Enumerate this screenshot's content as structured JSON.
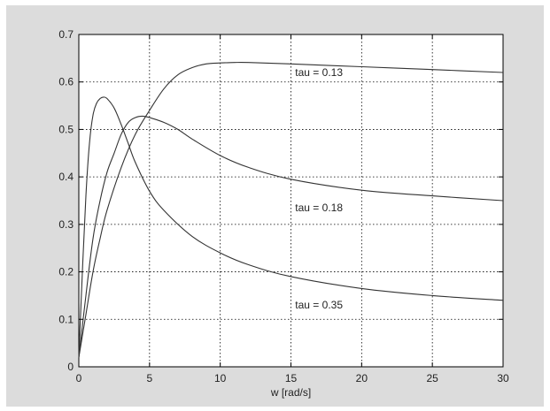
{
  "chart_data": {
    "type": "line",
    "title": "",
    "xlabel": "w [rad/s]",
    "ylabel": "",
    "xlim": [
      0,
      30
    ],
    "ylim": [
      0,
      0.7
    ],
    "xticks": [
      0,
      5,
      10,
      15,
      20,
      25,
      30
    ],
    "xtick_labels": [
      "0",
      "5",
      "10",
      "15",
      "20",
      "25",
      "30"
    ],
    "yticks": [
      0,
      0.1,
      0.2,
      0.3,
      0.4,
      0.5,
      0.6,
      0.7
    ],
    "ytick_labels": [
      "0",
      "0.1",
      "0.2",
      "0.3",
      "0.4",
      "0.5",
      "0.6",
      "0.7"
    ],
    "grid": true,
    "line_color": "#333333",
    "series": [
      {
        "label": "tau = 0.13",
        "label_at": [
          15.3,
          0.62
        ],
        "x": [
          0,
          0.5,
          1,
          1.5,
          2,
          3,
          4,
          5,
          6,
          7,
          8,
          9,
          10,
          11,
          12,
          15,
          20,
          25,
          30
        ],
        "y": [
          0.02,
          0.11,
          0.2,
          0.27,
          0.33,
          0.42,
          0.49,
          0.54,
          0.585,
          0.615,
          0.63,
          0.638,
          0.64,
          0.641,
          0.641,
          0.638,
          0.632,
          0.626,
          0.62
        ]
      },
      {
        "label": "tau = 0.18",
        "label_at": [
          15.3,
          0.335
        ],
        "x": [
          0,
          0.5,
          1,
          1.5,
          2,
          2.5,
          3,
          3.5,
          4,
          4.5,
          5,
          6,
          7,
          8,
          10,
          12,
          15,
          20,
          25,
          30
        ],
        "y": [
          0.02,
          0.15,
          0.27,
          0.35,
          0.41,
          0.45,
          0.49,
          0.515,
          0.525,
          0.528,
          0.525,
          0.515,
          0.5,
          0.48,
          0.445,
          0.42,
          0.395,
          0.372,
          0.36,
          0.35
        ]
      },
      {
        "label": "tau = 0.35",
        "label_at": [
          15.3,
          0.13
        ],
        "x": [
          0,
          0.25,
          0.5,
          0.75,
          1,
          1.25,
          1.5,
          1.75,
          2,
          2.5,
          3,
          3.5,
          4,
          5,
          6,
          8,
          10,
          12,
          15,
          20,
          25,
          30
        ],
        "y": [
          0.02,
          0.2,
          0.36,
          0.47,
          0.53,
          0.555,
          0.565,
          0.568,
          0.565,
          0.545,
          0.51,
          0.47,
          0.43,
          0.37,
          0.33,
          0.275,
          0.24,
          0.215,
          0.19,
          0.165,
          0.15,
          0.14
        ]
      }
    ]
  }
}
